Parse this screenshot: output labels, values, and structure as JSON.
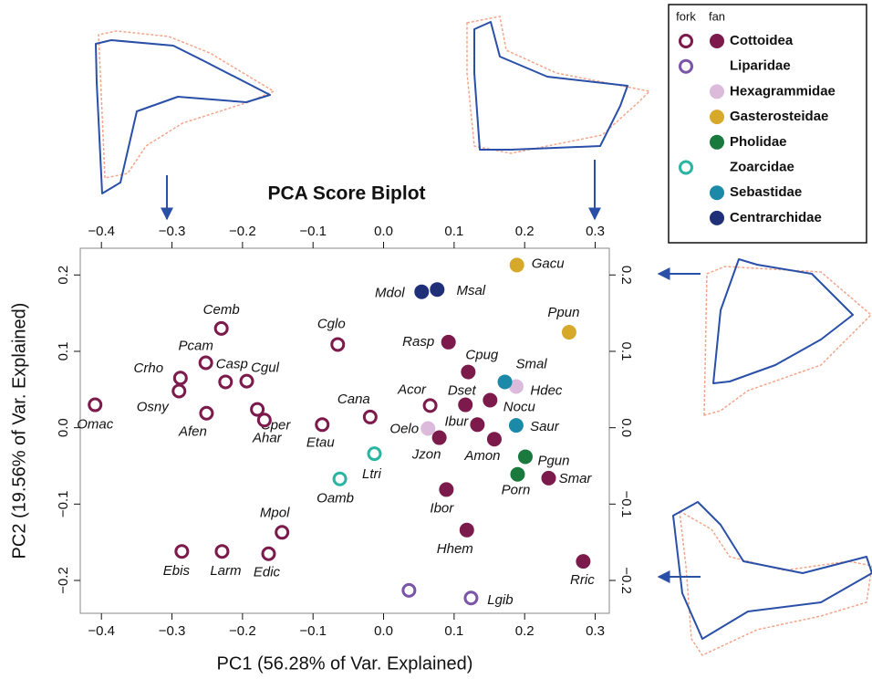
{
  "chart_data": {
    "type": "scatter",
    "title": "PCA Score Biplot",
    "x_label": "PC1 (56.28% of Var. Explained)",
    "y_label": "PC2 (19.56% of Var. Explained)",
    "xlim": [
      -0.43,
      0.32
    ],
    "ylim": [
      -0.243,
      0.235
    ],
    "xticks": [
      {
        "value": -0.4,
        "label": "−0.4"
      },
      {
        "value": -0.3,
        "label": "−0.3"
      },
      {
        "value": -0.2,
        "label": "−0.2"
      },
      {
        "value": -0.1,
        "label": "−0.1"
      },
      {
        "value": 0,
        "label": "0.0"
      },
      0.1,
      0.2,
      0.3
    ],
    "yticks": [
      {
        "value": -0.2,
        "label": "−0.2"
      },
      {
        "value": -0.1,
        "label": "−0.1"
      },
      {
        "value": 0,
        "label": "0.0"
      },
      0.1,
      0.2
    ],
    "legend_headers": [
      "fork",
      "fan"
    ],
    "legend_position": "top-right",
    "series": [
      {
        "name": "Cottoidea",
        "color": "#7b1a4b",
        "points": [
          {
            "label": "Omac",
            "x": -0.409,
            "y": 0.03,
            "fin": "fork"
          },
          {
            "label": "Crho",
            "x": -0.288,
            "y": 0.065,
            "fin": "fork"
          },
          {
            "label": "Osny",
            "x": -0.29,
            "y": 0.048,
            "fin": "fork"
          },
          {
            "label": "Cemb",
            "x": -0.23,
            "y": 0.13,
            "fin": "fork"
          },
          {
            "label": "Pcam",
            "x": -0.252,
            "y": 0.085,
            "fin": "fork"
          },
          {
            "label": "Casp",
            "x": -0.224,
            "y": 0.06,
            "fin": "fork"
          },
          {
            "label": "Cgul",
            "x": -0.194,
            "y": 0.061,
            "fin": "fork"
          },
          {
            "label": "Afen",
            "x": -0.251,
            "y": 0.019,
            "fin": "fork"
          },
          {
            "label": "Cper",
            "x": -0.179,
            "y": 0.024,
            "fin": "fork"
          },
          {
            "label": "Ahar",
            "x": -0.169,
            "y": 0.01,
            "fin": "fork"
          },
          {
            "label": "Cglo",
            "x": -0.065,
            "y": 0.109,
            "fin": "fork"
          },
          {
            "label": "Etau",
            "x": -0.087,
            "y": 0.004,
            "fin": "fork"
          },
          {
            "label": "Cana",
            "x": -0.019,
            "y": 0.014,
            "fin": "fork"
          },
          {
            "label": "Acor",
            "x": 0.066,
            "y": 0.029,
            "fin": "fork"
          },
          {
            "label": "Jzon",
            "x": 0.079,
            "y": -0.013,
            "fin": "fan"
          },
          {
            "label": "Rasp",
            "x": 0.092,
            "y": 0.112,
            "fin": "fan"
          },
          {
            "label": "Cpug",
            "x": 0.12,
            "y": 0.073,
            "fin": "fan"
          },
          {
            "label": "Dset",
            "x": 0.116,
            "y": 0.03,
            "fin": "fan"
          },
          {
            "label": "Ibur",
            "x": 0.133,
            "y": 0.004,
            "fin": "fan"
          },
          {
            "label": "Nocu",
            "x": 0.151,
            "y": 0.036,
            "fin": "fan"
          },
          {
            "label": "Amon",
            "x": 0.157,
            "y": -0.015,
            "fin": "fan"
          },
          {
            "label": "Smar",
            "x": 0.234,
            "y": -0.066,
            "fin": "fan"
          },
          {
            "label": "Ibor",
            "x": 0.089,
            "y": -0.081,
            "fin": "fan"
          },
          {
            "label": "Hhem",
            "x": 0.118,
            "y": -0.134,
            "fin": "fan"
          },
          {
            "label": "Rric",
            "x": 0.283,
            "y": -0.175,
            "fin": "fan"
          },
          {
            "label": "Mpol",
            "x": -0.144,
            "y": -0.137,
            "fin": "fork"
          },
          {
            "label": "Ebis",
            "x": -0.286,
            "y": -0.162,
            "fin": "fork"
          },
          {
            "label": "Larm",
            "x": -0.229,
            "y": -0.162,
            "fin": "fork"
          },
          {
            "label": "Edic",
            "x": -0.163,
            "y": -0.165,
            "fin": "fork"
          }
        ]
      },
      {
        "name": "Liparidae",
        "color": "#7a55a8",
        "points": [
          {
            "label": "Lgib",
            "x": 0.124,
            "y": -0.223,
            "fin": "fork"
          },
          {
            "label": null,
            "x": 0.036,
            "y": -0.213,
            "fin": "fork"
          }
        ]
      },
      {
        "name": "Hexagrammidae",
        "color": "#dcbadc",
        "points": [
          {
            "label": "Oelo",
            "x": 0.063,
            "y": -0.001,
            "fin": "fan"
          },
          {
            "label": "Hdec",
            "x": 0.188,
            "y": 0.054,
            "fin": "fan"
          }
        ]
      },
      {
        "name": "Gasterosteidae",
        "color": "#d6a92a",
        "points": [
          {
            "label": "Gacu",
            "x": 0.189,
            "y": 0.213,
            "fin": "fan"
          },
          {
            "label": "Ppun",
            "x": 0.263,
            "y": 0.125,
            "fin": "fan"
          }
        ]
      },
      {
        "name": "Pholidae",
        "color": "#1a7a3e",
        "points": [
          {
            "label": "Pgun",
            "x": 0.201,
            "y": -0.038,
            "fin": "fan"
          },
          {
            "label": "Porn",
            "x": 0.19,
            "y": -0.061,
            "fin": "fan"
          }
        ]
      },
      {
        "name": "Zoarcidae",
        "color": "#2ab5a0",
        "points": [
          {
            "label": "Ltri",
            "x": -0.013,
            "y": -0.034,
            "fin": "fork"
          },
          {
            "label": "Oamb",
            "x": -0.062,
            "y": -0.067,
            "fin": "fork"
          }
        ]
      },
      {
        "name": "Sebastidae",
        "color": "#1a8aa8",
        "points": [
          {
            "label": "Smal",
            "x": 0.172,
            "y": 0.06,
            "fin": "fan"
          },
          {
            "label": "Saur",
            "x": 0.188,
            "y": 0.003,
            "fin": "fan"
          }
        ]
      },
      {
        "name": "Centrarchidae",
        "color": "#1f2f78",
        "points": [
          {
            "label": "Mdol",
            "x": 0.054,
            "y": 0.178,
            "fin": "fan"
          },
          {
            "label": "Msal",
            "x": 0.076,
            "y": 0.181,
            "fin": "fan"
          }
        ]
      }
    ]
  }
}
